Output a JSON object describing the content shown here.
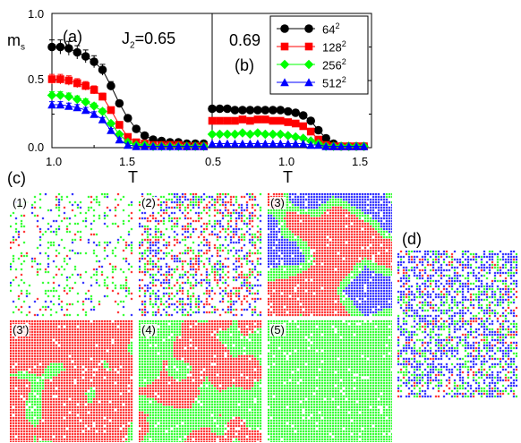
{
  "labels": {
    "a": "(a)",
    "b": "(b)",
    "c": "(c)",
    "d": "(d)",
    "ylabel_main": "m",
    "ylabel_sub": "s",
    "xlabel": "T",
    "j2_prefix": "J",
    "j2_sub": "2",
    "j2_value": "=0.65",
    "j2_b": "0.69"
  },
  "colors": {
    "red": "#ff0000",
    "green": "#00ff00",
    "blue": "#0000ff",
    "black": "#000000"
  },
  "legend": [
    {
      "base": "64",
      "exp": "2",
      "color": "#000000",
      "marker": "circle"
    },
    {
      "base": "128",
      "exp": "2",
      "color": "#ff0000",
      "marker": "square"
    },
    {
      "base": "256",
      "exp": "2",
      "color": "#00ff00",
      "marker": "diamond"
    },
    {
      "base": "512",
      "exp": "2",
      "color": "#0000ff",
      "marker": "triangle"
    }
  ],
  "chart_data": [
    {
      "type": "line",
      "panel": "(a)",
      "xlabel": "T",
      "ylabel": "m_s",
      "xlim": [
        1.0,
        1.95
      ],
      "ylim": [
        0.0,
        1.0
      ],
      "xticks": [
        "1.0",
        "1.5"
      ],
      "yticks": [
        "0.0",
        "0.5",
        "1.0"
      ],
      "annotation": "J2=0.65",
      "x": [
        1.0,
        1.05,
        1.1,
        1.15,
        1.2,
        1.25,
        1.3,
        1.35,
        1.4,
        1.45,
        1.5,
        1.55,
        1.6,
        1.65,
        1.7,
        1.75,
        1.8,
        1.85,
        1.9
      ],
      "series": [
        {
          "name": "64^2",
          "values": [
            0.75,
            0.75,
            0.74,
            0.71,
            0.68,
            0.64,
            0.58,
            0.46,
            0.33,
            0.22,
            0.14,
            0.09,
            0.06,
            0.05,
            0.04,
            0.04,
            0.03,
            0.03,
            0.03
          ]
        },
        {
          "name": "128^2",
          "values": [
            0.51,
            0.51,
            0.5,
            0.48,
            0.46,
            0.43,
            0.38,
            0.28,
            0.17,
            0.08,
            0.04,
            0.03,
            0.02,
            0.02,
            0.02,
            0.02,
            0.01,
            0.01,
            0.01
          ]
        },
        {
          "name": "256^2",
          "values": [
            0.39,
            0.39,
            0.38,
            0.36,
            0.34,
            0.31,
            0.27,
            0.18,
            0.1,
            0.04,
            0.02,
            0.02,
            0.01,
            0.01,
            0.01,
            0.01,
            0.01,
            0.01,
            0.01
          ]
        },
        {
          "name": "512^2",
          "values": [
            0.32,
            0.32,
            0.31,
            0.3,
            0.28,
            0.25,
            0.21,
            0.13,
            0.06,
            0.02,
            0.01,
            0.01,
            0.01,
            0.01,
            0.01,
            0.01,
            0.01,
            0.01,
            0.01
          ]
        }
      ]
    },
    {
      "type": "line",
      "panel": "(b)",
      "xlabel": "T",
      "ylabel": "m_s",
      "xlim": [
        0.5,
        1.55
      ],
      "ylim": [
        0.0,
        1.0
      ],
      "xticks": [
        "0.5",
        "1.0",
        "1.5"
      ],
      "annotation": "0.69",
      "x": [
        0.5,
        0.55,
        0.6,
        0.65,
        0.7,
        0.75,
        0.8,
        0.85,
        0.9,
        0.95,
        1.0,
        1.05,
        1.1,
        1.15,
        1.2,
        1.25,
        1.3,
        1.35,
        1.4,
        1.45,
        1.5
      ],
      "series": [
        {
          "name": "64^2",
          "values": [
            0.29,
            0.29,
            0.29,
            0.28,
            0.28,
            0.28,
            0.28,
            0.28,
            0.28,
            0.28,
            0.27,
            0.26,
            0.24,
            0.2,
            0.13,
            0.07,
            0.03,
            0.01,
            0.01,
            0.01,
            0.01
          ]
        },
        {
          "name": "128^2",
          "values": [
            0.2,
            0.2,
            0.2,
            0.2,
            0.21,
            0.2,
            0.21,
            0.21,
            0.2,
            0.2,
            0.19,
            0.18,
            0.16,
            0.12,
            0.06,
            0.02,
            0.01,
            0.01,
            0.01,
            0.01,
            0.01
          ]
        },
        {
          "name": "256^2",
          "values": [
            0.1,
            0.1,
            0.1,
            0.1,
            0.11,
            0.1,
            0.11,
            0.1,
            0.1,
            0.1,
            0.09,
            0.08,
            0.07,
            0.05,
            0.03,
            0.01,
            0.01,
            0.01,
            0.01,
            0.01,
            0.01
          ]
        },
        {
          "name": "512^2",
          "values": [
            0.03,
            0.03,
            0.03,
            0.03,
            0.03,
            0.03,
            0.03,
            0.03,
            0.03,
            0.03,
            0.03,
            0.03,
            0.03,
            0.02,
            0.02,
            0.01,
            0.01,
            0.01,
            0.01,
            0.01,
            0.01
          ]
        }
      ]
    }
  ],
  "snapshots": [
    {
      "label": "(1)",
      "weights": {
        "red": 0.07,
        "green": 0.18,
        "blue": 0.06
      },
      "dominant": null,
      "density": 0.3
    },
    {
      "label": "(2)",
      "weights": {
        "red": 0.3,
        "green": 0.28,
        "blue": 0.3
      },
      "dominant": null,
      "density": 0.65
    },
    {
      "label": "(3)",
      "weights": {
        "red": 0.45,
        "green": 0.15,
        "blue": 0.4
      },
      "dominant": "domains-rgb",
      "density": 1.0
    },
    {
      "label": "(3')",
      "weights": {
        "red": 0.72,
        "green": 0.28,
        "blue": 0.0
      },
      "dominant": "red",
      "density": 1.0
    },
    {
      "label": "(4)",
      "weights": {
        "red": 0.58,
        "green": 0.42,
        "blue": 0.0
      },
      "dominant": "red",
      "density": 1.0
    },
    {
      "label": "(5)",
      "weights": {
        "red": 0.03,
        "green": 0.9,
        "blue": 0.0
      },
      "dominant": "green",
      "density": 1.0
    },
    {
      "label": "(d)",
      "weights": {
        "red": 0.1,
        "green": 0.22,
        "blue": 0.48
      },
      "dominant": null,
      "density": 0.85
    }
  ]
}
